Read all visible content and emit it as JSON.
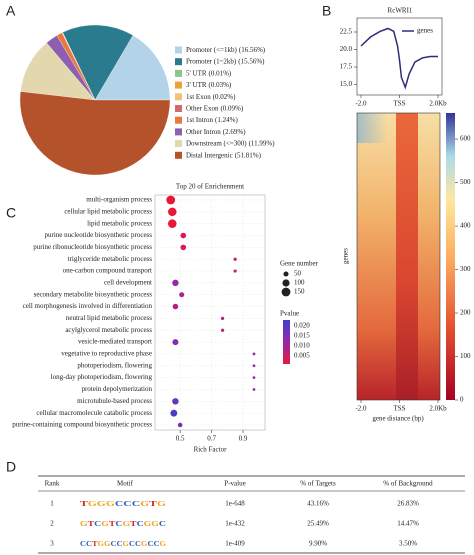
{
  "panel_labels": [
    "A",
    "B",
    "C",
    "D"
  ],
  "chart_data": [
    {
      "type": "pie",
      "categories": [
        "Promoter (<=1kb)",
        "Promoter (1~2kb)",
        "5' UTR",
        "3' UTR",
        "1st Exon",
        "Other Exon",
        "1st Intron",
        "Other Intron",
        "Downstream (<=300)",
        "Distal Intergenic"
      ],
      "values": [
        16.56,
        15.56,
        0.01,
        0.03,
        0.02,
        0.09,
        1.24,
        2.69,
        11.99,
        51.81
      ],
      "value_labels": [
        "(16.56%)",
        "(15.56%)",
        "(0.01%)",
        "(0.03%)",
        "(0.02%)",
        "(0.09%)",
        "(1.24%)",
        "(2.69%)",
        "(11.99%)",
        "(51.81%)"
      ],
      "colors": [
        "#b3d3e8",
        "#2b7b8e",
        "#8fc58a",
        "#e8a13c",
        "#f2c07a",
        "#cf6a6a",
        "#e8793a",
        "#8e5fb1",
        "#e2d7ad",
        "#b4522b"
      ]
    },
    {
      "type": "line",
      "title": "RcWRI1",
      "x": [
        -2,
        -1.5,
        -1,
        -0.6,
        -0.3,
        -0.1,
        0,
        0.1,
        0.3,
        0.5,
        0.8,
        1.2,
        1.6,
        2
      ],
      "series": [
        {
          "name": "genes",
          "color": "#2b2f7a",
          "values": [
            20.5,
            21.8,
            22.6,
            23.0,
            22.6,
            20.5,
            18.5,
            16.0,
            14.6,
            16.5,
            18.2,
            18.8,
            19.0,
            19.0
          ]
        }
      ],
      "xlim": [
        -2,
        2
      ],
      "xticks": [
        {
          "value": -2,
          "label": "-2.0"
        },
        {
          "value": 0,
          "label": "TSS"
        },
        {
          "value": 2,
          "label": "2.0Kb"
        }
      ],
      "ylim": [
        13.5,
        24.5
      ],
      "yticks": [
        {
          "value": 15,
          "label": "15.0"
        },
        17.5,
        {
          "value": 20,
          "label": "20.0"
        },
        22.5
      ]
    },
    {
      "type": "heatmap",
      "ylabel": "genes",
      "xlabel": "gene distance (bp)",
      "xlim": [
        -2,
        2
      ],
      "xticks": [
        {
          "value": -2,
          "label": "-2.0"
        },
        {
          "value": 0,
          "label": "TSS"
        },
        {
          "value": 2,
          "label": "2.0Kb"
        }
      ],
      "clim": [
        0,
        660
      ],
      "cticks": [
        0,
        100,
        200,
        300,
        400,
        500,
        600
      ]
    },
    {
      "type": "scatter",
      "title": "Top 20 of Enrichenment",
      "xlabel": "Rich Factor",
      "categories": [
        "multi-organism process",
        "cellular lipid metabolic process",
        "lipid metabolic process",
        "purine nucleotide biosynthetic process",
        "purine ribonucleotide biosynthetic process",
        "triglyceride metabolic process",
        "one-carbon compound transport",
        "cell development",
        "secondary metabolite biosynthetic process",
        "cell morphogenesis involved in differentiation",
        "neutral lipid metabolic process",
        "acylglycerol metabolic process",
        "vesicle-mediated transport",
        "vegetative to reproductive phase",
        "photoperiodism, flowering",
        "long-day photoperiodism, flowering",
        "protein depolymerization",
        "microtubule-based process",
        "cellular macromolecule catabolic process",
        "purine-containing compound biosynthetic process"
      ],
      "x": [
        0.44,
        0.45,
        0.45,
        0.52,
        0.52,
        0.85,
        0.85,
        0.47,
        0.51,
        0.47,
        0.77,
        0.77,
        0.47,
        0.97,
        0.97,
        0.97,
        0.97,
        0.47,
        0.46,
        0.5
      ],
      "sizes": [
        150,
        140,
        140,
        60,
        60,
        20,
        20,
        80,
        50,
        60,
        20,
        20,
        70,
        15,
        15,
        15,
        15,
        80,
        90,
        40
      ],
      "pvalues": [
        0.001,
        0.001,
        0.001,
        0.003,
        0.003,
        0.004,
        0.004,
        0.012,
        0.01,
        0.008,
        0.008,
        0.008,
        0.014,
        0.012,
        0.012,
        0.012,
        0.012,
        0.018,
        0.021,
        0.016
      ],
      "xlim": [
        0.34,
        1.04
      ],
      "xticks": [
        0.5,
        0.7,
        0.9
      ],
      "size_legend": {
        "title": "Gene number",
        "values": [
          50,
          100,
          150
        ]
      },
      "color_legend": {
        "title": "Pvalue",
        "clim": [
          0.001,
          0.023
        ],
        "ticks": [
          0.005,
          {
            "value": 0.01,
            "label": "0.010"
          },
          0.015,
          {
            "value": 0.02,
            "label": "0.020"
          }
        ]
      }
    }
  ],
  "table": {
    "columns": [
      "Rank",
      "Motif",
      "P-value",
      "% of Targets",
      "% of Background"
    ],
    "rows": [
      [
        "1",
        "TGGGCCCGTG",
        "1e-648",
        "43.16%",
        "26.83%"
      ],
      [
        "2",
        "GTCGTCGTCGGC",
        "1e-432",
        "25.49%",
        "14.47%"
      ],
      [
        "3",
        "CCTGGCCGCCGCCG",
        "1e-409",
        "9.90%",
        "3.50%"
      ]
    ]
  }
}
